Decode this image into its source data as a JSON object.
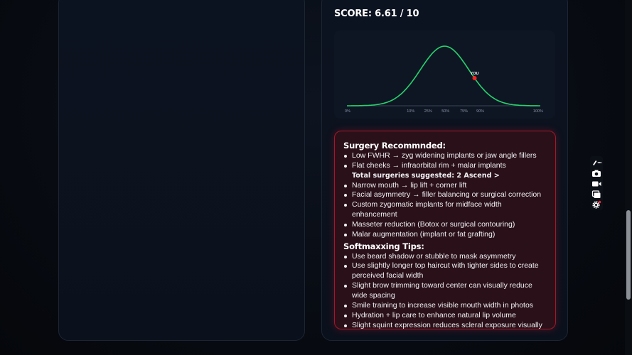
{
  "score": {
    "label": "SCORE: 6.61 / 10"
  },
  "chart_data": {
    "type": "line",
    "title": "",
    "x_ticks": [
      "0%",
      "10%",
      "25%",
      "50%",
      "75%",
      "90%",
      "100%"
    ],
    "marker": {
      "label": "YOU",
      "percentile": 66
    },
    "series": [
      {
        "values": "normal-distribution"
      }
    ],
    "colors": {
      "curve": "#27d36a",
      "marker": "#ff2020",
      "axis": "#3a4455"
    }
  },
  "surgery": {
    "title": "Surgery Recommnded:",
    "items": [
      "Low FWHR → zyg widening implants or jaw angle fillers",
      "Flat cheeks → infraorbital rim + malar implants"
    ],
    "total_label": "Total surgeries suggested: 2 Ascend >",
    "more_items": [
      "Narrow mouth → lip lift + corner lift",
      "Facial asymmetry → filler balancing or surgical correction",
      "Custom zygomatic implants for midface width enhancement",
      "Masseter reduction (Botox or surgical contouring)",
      "Malar augmentation (implant or fat grafting)"
    ]
  },
  "softmaxxing": {
    "title": "Softmaxxing Tips:",
    "items": [
      "Use beard shadow or stubble to mask asymmetry",
      "Use slightly longer top haircut with tighter sides to create perceived facial width",
      "Slight brow trimming toward center can visually reduce wide spacing",
      "Smile training to increase visible mouth width in photos",
      "Hydration + lip care to enhance natural lip volume",
      "Slight squint expression reduces scleral exposure visually"
    ]
  },
  "toolbar": {
    "icons": [
      "pencil-more-icon",
      "camera-icon",
      "video-icon",
      "copy-icon",
      "settings-icon"
    ]
  },
  "colors": {
    "accent_red": "#a0182a",
    "panel_bg": "#0c1320"
  }
}
